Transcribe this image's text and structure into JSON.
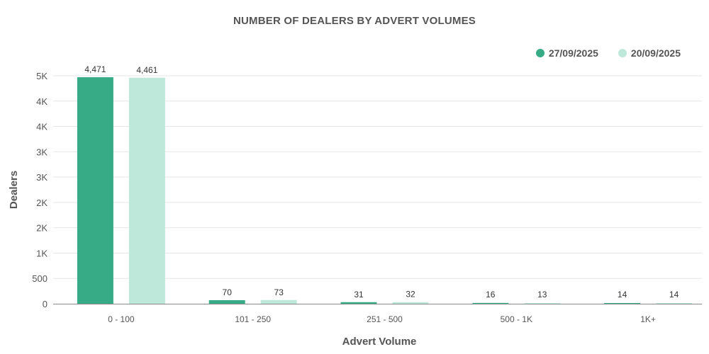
{
  "chart_data": {
    "type": "bar",
    "title": "NUMBER OF DEALERS BY ADVERT VOLUMES",
    "xlabel": "Advert Volume",
    "ylabel": "Dealers",
    "categories": [
      "0 - 100",
      "101 - 250",
      "251 - 500",
      "500 - 1K",
      "1K+"
    ],
    "series": [
      {
        "name": "27/09/2025",
        "values": [
          4471,
          70,
          31,
          16,
          14
        ],
        "labels": [
          "4,471",
          "70",
          "31",
          "16",
          "14"
        ],
        "color": "#36ab85"
      },
      {
        "name": "20/09/2025",
        "values": [
          4461,
          73,
          32,
          13,
          14
        ],
        "labels": [
          "4,461",
          "73",
          "32",
          "13",
          "14"
        ],
        "color": "#bde8da"
      }
    ],
    "yticks": [
      0,
      500,
      1000,
      1500,
      2000,
      2500,
      3000,
      3500,
      4000,
      4500
    ],
    "ytick_labels": [
      "0",
      "500",
      "1K",
      "2K",
      "2K",
      "3K",
      "3K",
      "4K",
      "4K",
      "5K"
    ],
    "ylim": [
      0,
      4500
    ],
    "grid": true,
    "legend_position": "top-right"
  }
}
